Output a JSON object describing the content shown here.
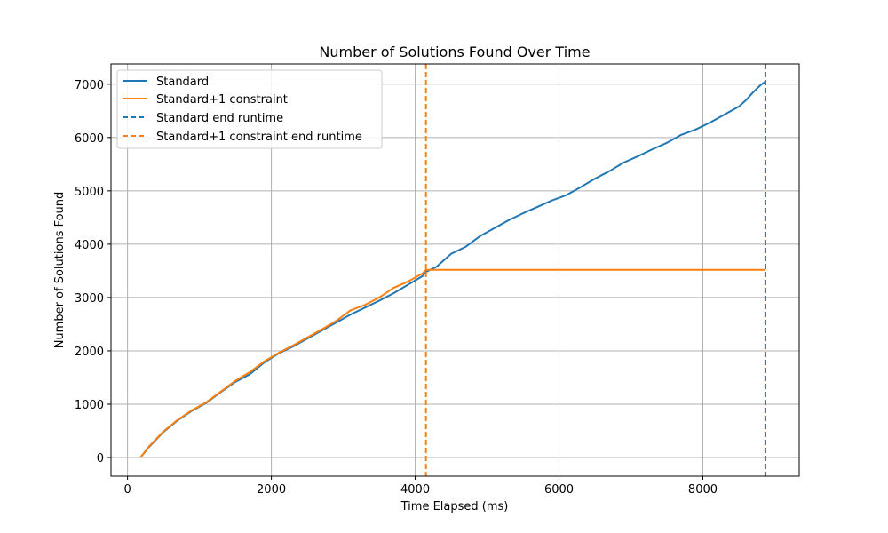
{
  "chart_data": {
    "type": "line",
    "title": "Number of Solutions Found Over Time",
    "xlabel": "Time Elapsed (ms)",
    "ylabel": "Number of Solutions Found",
    "xlim": [
      -230,
      9340
    ],
    "ylim": [
      -350,
      7380
    ],
    "xticks": [
      0,
      2000,
      4000,
      6000,
      8000
    ],
    "yticks": [
      0,
      1000,
      2000,
      3000,
      4000,
      5000,
      6000,
      7000
    ],
    "grid": true,
    "legend_position": "top-left",
    "series": [
      {
        "name": "Standard",
        "color": "#1f77b4",
        "style": "solid",
        "x": [
          180,
          300,
          500,
          700,
          900,
          1100,
          1300,
          1500,
          1700,
          1900,
          2100,
          2300,
          2500,
          2700,
          2900,
          3100,
          3300,
          3500,
          3700,
          3900,
          4100,
          4150,
          4300,
          4500,
          4700,
          4900,
          5100,
          5300,
          5500,
          5700,
          5900,
          6100,
          6300,
          6500,
          6700,
          6900,
          7100,
          7300,
          7500,
          7700,
          7900,
          8100,
          8300,
          8500,
          8600,
          8700,
          8800,
          8870
        ],
        "y": [
          0,
          200,
          480,
          700,
          880,
          1030,
          1230,
          1420,
          1560,
          1780,
          1950,
          2080,
          2230,
          2380,
          2530,
          2680,
          2810,
          2940,
          3080,
          3240,
          3400,
          3480,
          3580,
          3820,
          3950,
          4150,
          4300,
          4450,
          4580,
          4700,
          4820,
          4920,
          5070,
          5230,
          5370,
          5530,
          5650,
          5780,
          5900,
          6050,
          6150,
          6280,
          6430,
          6580,
          6700,
          6850,
          6980,
          7050
        ]
      },
      {
        "name": "Standard+1 constraint",
        "color": "#ff7f0e",
        "style": "solid",
        "x": [
          180,
          300,
          500,
          700,
          900,
          1100,
          1300,
          1500,
          1700,
          1900,
          2100,
          2300,
          2500,
          2700,
          2900,
          3100,
          3300,
          3500,
          3700,
          3900,
          4100,
          4150,
          6000,
          8870
        ],
        "y": [
          0,
          210,
          490,
          710,
          890,
          1040,
          1240,
          1440,
          1600,
          1800,
          1960,
          2100,
          2250,
          2400,
          2560,
          2760,
          2860,
          3000,
          3180,
          3300,
          3450,
          3520,
          3520,
          3520
        ]
      },
      {
        "name": "Standard end runtime",
        "color": "#1f77b4",
        "style": "dashed",
        "xline": 8870
      },
      {
        "name": "Standard+1 constraint end runtime",
        "color": "#ff7f0e",
        "style": "dashed",
        "xline": 4150
      }
    ]
  }
}
